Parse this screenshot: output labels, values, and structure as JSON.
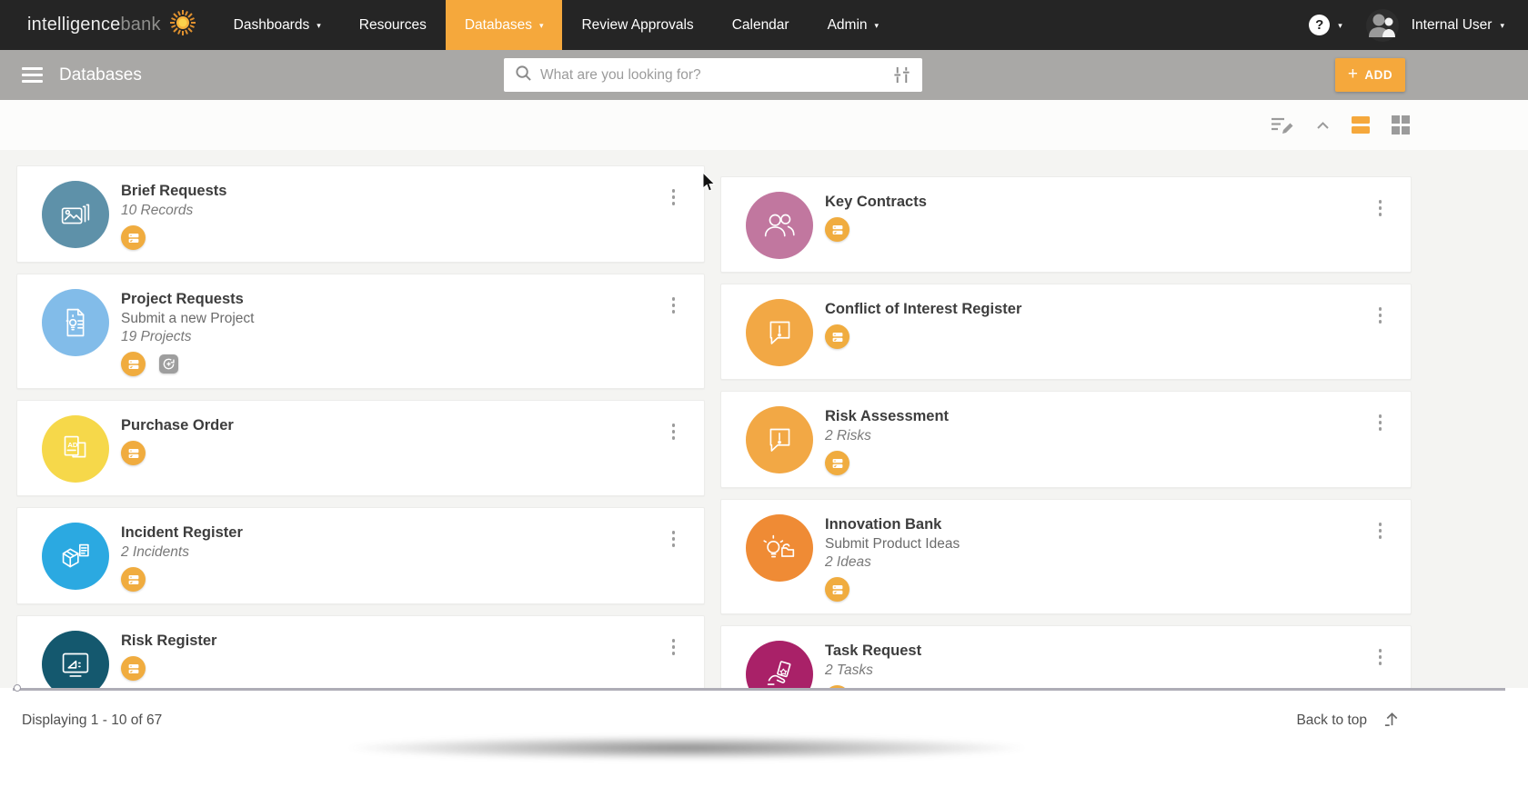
{
  "brand": {
    "logo_primary": "intelligence",
    "logo_secondary": "bank"
  },
  "nav": {
    "items": [
      {
        "label": "Dashboards",
        "caret": true,
        "active": false
      },
      {
        "label": "Resources",
        "caret": false,
        "active": false
      },
      {
        "label": "Databases",
        "caret": true,
        "active": true
      },
      {
        "label": "Review Approvals",
        "caret": false,
        "active": false
      },
      {
        "label": "Calendar",
        "caret": false,
        "active": false
      },
      {
        "label": "Admin",
        "caret": true,
        "active": false
      }
    ],
    "help_label": "?",
    "user": {
      "name": "Internal User"
    }
  },
  "subheader": {
    "title": "Databases",
    "search_placeholder": "What are you looking for?",
    "search_value": "",
    "add_label": "ADD",
    "add_plus": "+"
  },
  "view_toolbar": {
    "active_view": "list"
  },
  "cards": {
    "left": [
      {
        "title": "Brief Requests",
        "count": "10 Records",
        "avatar_color": "#5E91A9",
        "icon": "photos-stack-icon",
        "badges": [
          "form"
        ]
      },
      {
        "title": "Project Requests",
        "subtitle": "Submit a new Project",
        "count": "19 Projects",
        "avatar_color": "#82BCE9",
        "icon": "document-idea-icon",
        "badges": [
          "form",
          "workflow"
        ]
      },
      {
        "title": "Purchase Order",
        "avatar_color": "#F6D84A",
        "icon": "ad-poster-icon",
        "badges": [
          "form"
        ]
      },
      {
        "title": "Incident Register",
        "count": "2 Incidents",
        "avatar_color": "#2BA9E1",
        "icon": "box-document-icon",
        "badges": [
          "form"
        ]
      },
      {
        "title": "Risk Register",
        "avatar_color": "#14586E",
        "icon": "presentation-screen-icon",
        "badges": [
          "form"
        ]
      }
    ],
    "right": [
      {
        "title": "Key Contracts",
        "avatar_color": "#C1779F",
        "icon": "people-pair-icon",
        "badges": [
          "form"
        ]
      },
      {
        "title": "Conflict of Interest Register",
        "avatar_color": "#F2A845",
        "icon": "alert-bubble-icon",
        "badges": [
          "form"
        ]
      },
      {
        "title": "Risk Assessment",
        "count": "2 Risks",
        "avatar_color": "#F2A845",
        "icon": "alert-bubble-icon",
        "badges": [
          "form"
        ]
      },
      {
        "title": "Innovation Bank",
        "subtitle": "Submit Product Ideas",
        "count": "2 Ideas",
        "avatar_color": "#EF8B35",
        "icon": "idea-cloud-icon",
        "badges": [
          "form"
        ]
      },
      {
        "title": "Task Request",
        "count": "2 Tasks",
        "avatar_color": "#A92168",
        "icon": "hand-card-icon",
        "badges": [
          "form"
        ]
      }
    ]
  },
  "footer": {
    "displaying": "Displaying 1 - 10 of 67",
    "back_to_top": "Back to top"
  },
  "colors": {
    "accent_orange": "#F5A83C",
    "nav_bg": "#252525",
    "subheader_bg": "#A9A8A6",
    "badge_orange": "#F0AC3F",
    "badge_gray": "#9E9E9E"
  }
}
